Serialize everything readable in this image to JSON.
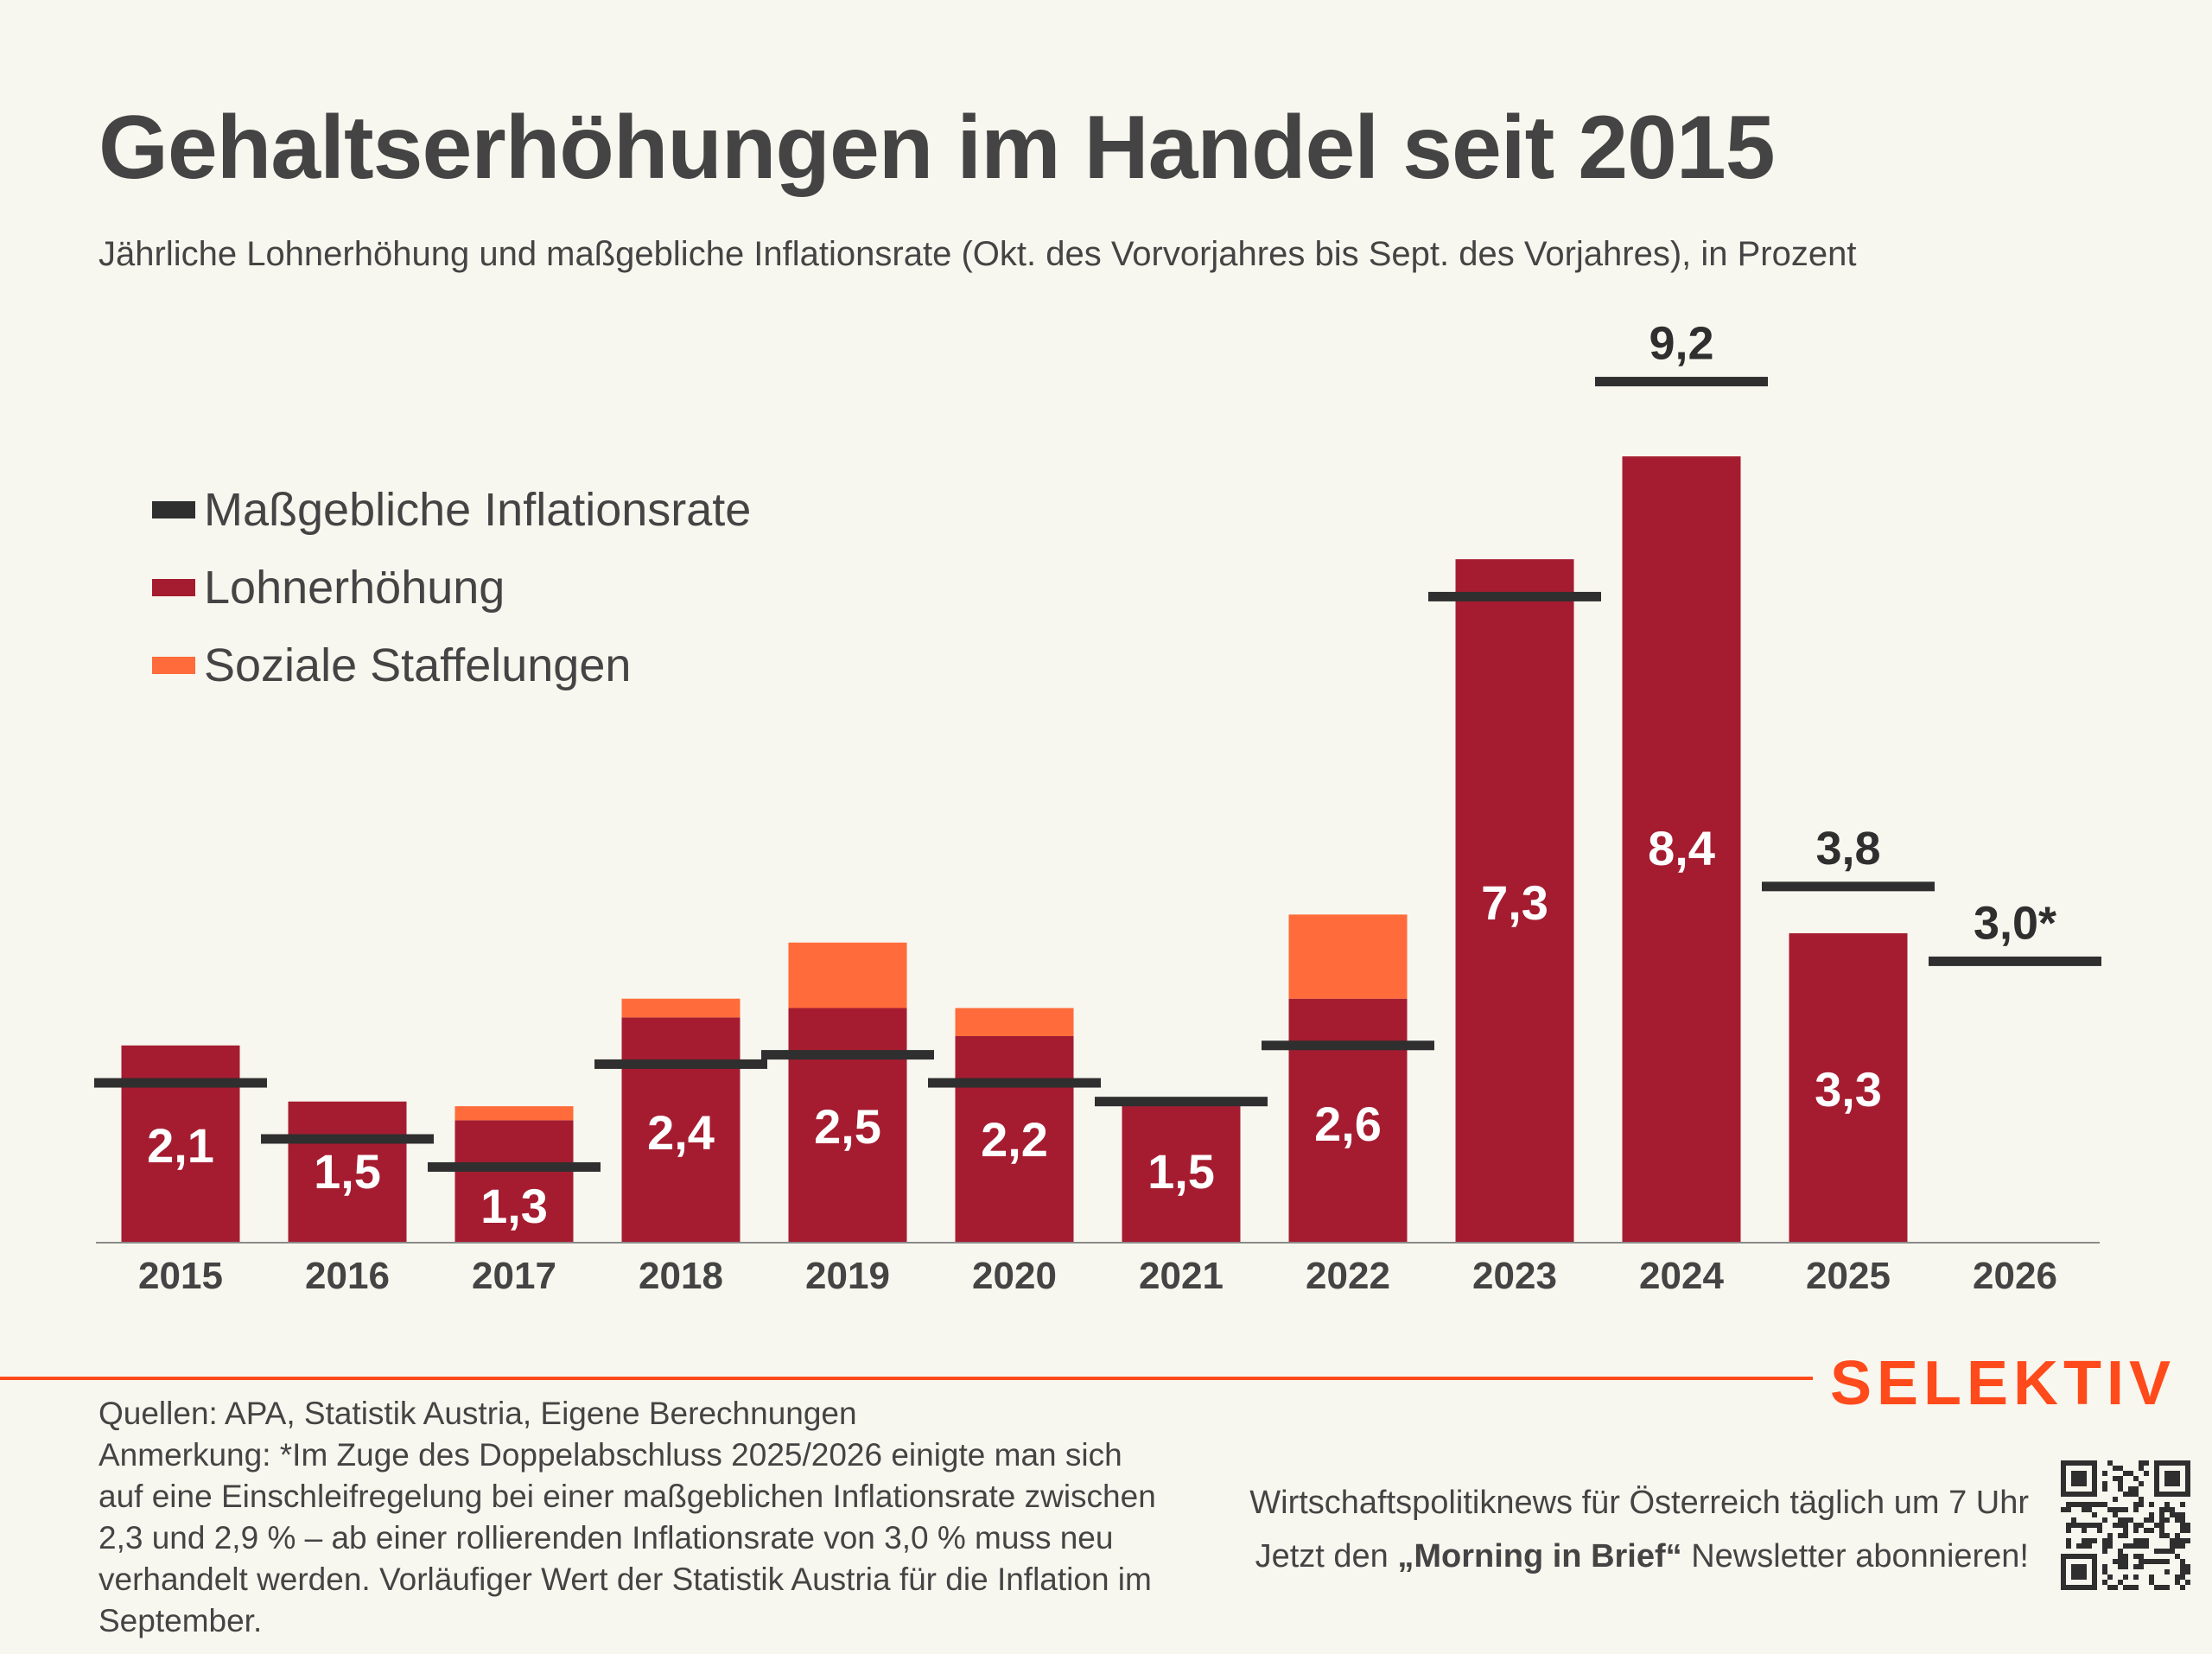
{
  "header": {
    "title": "Gehaltserhöhungen im Handel seit 2015",
    "subtitle": "Jährliche Lohnerhöhung und maßgebliche Inflationsrate (Okt. des Vorvorjahres bis Sept. des Vorjahres), in Prozent"
  },
  "colors": {
    "inflation": "#2f2f2f",
    "wage": "#a51c30",
    "social": "#ff6b3a",
    "brand": "#ff4a1c",
    "text": "#444444",
    "background": "#f8f7ef"
  },
  "legend": [
    {
      "label": "Maßgebliche Inflationsrate",
      "series": "inflation"
    },
    {
      "label": "Lohnerhöhung",
      "series": "wage"
    },
    {
      "label": "Soziale Staffelungen",
      "series": "social"
    }
  ],
  "chart_data": {
    "type": "bar",
    "stacked": true,
    "title": "Gehaltserhöhungen im Handel seit 2015",
    "subtitle": "Jährliche Lohnerhöhung und maßgebliche Inflationsrate (Okt. des Vorvorjahres bis Sept. des Vorjahres), in Prozent",
    "xlabel": "",
    "ylabel": "",
    "ylim": [
      0,
      9.5
    ],
    "grid": false,
    "legend_position": "top-left",
    "categories": [
      "2015",
      "2016",
      "2017",
      "2018",
      "2019",
      "2020",
      "2021",
      "2022",
      "2023",
      "2024",
      "2025",
      "2026"
    ],
    "series": [
      {
        "name": "Lohnerhöhung",
        "type": "bar",
        "values": [
          2.1,
          1.5,
          1.3,
          2.4,
          2.5,
          2.2,
          1.5,
          2.6,
          7.3,
          8.4,
          3.3,
          null
        ],
        "labels": [
          "2,1",
          "1,5",
          "1,3",
          "2,4",
          "2,5",
          "2,2",
          "1,5",
          "2,6",
          "7,3",
          "8,4",
          "3,3",
          ""
        ]
      },
      {
        "name": "Soziale Staffelungen",
        "type": "bar",
        "values": [
          0,
          0,
          0.15,
          0.2,
          0.7,
          0.3,
          0,
          0.9,
          0,
          0,
          0,
          null
        ]
      },
      {
        "name": "Maßgebliche Inflationsrate",
        "type": "marker",
        "values": [
          1.7,
          1.1,
          0.8,
          1.9,
          2.0,
          1.7,
          1.5,
          2.1,
          6.9,
          9.2,
          3.8,
          3.0
        ],
        "labels": [
          "",
          "",
          "",
          "",
          "",
          "",
          "",
          "",
          "",
          "9,2",
          "3,8",
          "3,0*"
        ]
      }
    ]
  },
  "footer": {
    "brand": "SELEKTIV",
    "sources": "Quellen: APA, Statistik Austria, Eigene Berechnungen",
    "note": "Anmerkung: *Im Zuge des Doppelabschluss 2025/2026 einigte man sich auf eine Einschleifregelung bei einer maßgeblichen Inflationsrate zwischen 2,3 und 2,9 % – ab einer rollierenden Inflationsrate von 3,0 % muss neu verhandelt werden. Vorläufiger Wert der Statistik Austria für die Inflation im September.",
    "promo_line1": "Wirtschaftspolitiknews für Österreich täglich um 7 Uhr",
    "promo_line2_pre": "Jetzt den ",
    "promo_line2_bold": "„Morning in Brief“",
    "promo_line2_post": " Newsletter abonnieren!",
    "qr_icon": "qr-code-icon"
  }
}
